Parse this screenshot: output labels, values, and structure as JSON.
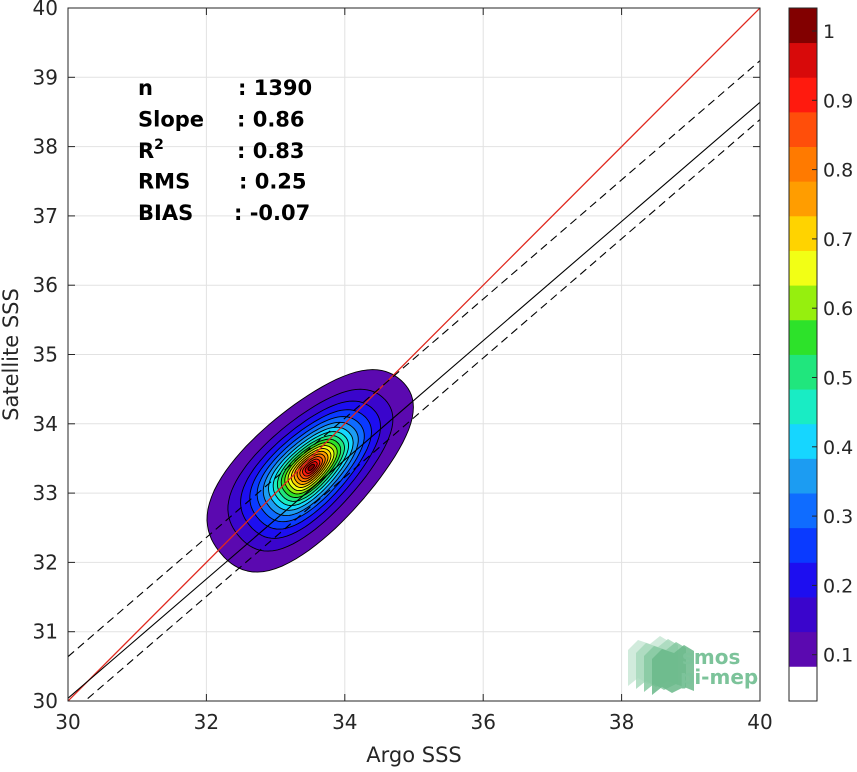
{
  "chart_data": {
    "type": "heatmap",
    "subtype": "density-contour",
    "xlabel": "Argo SSS",
    "ylabel": "Satellite SSS",
    "xlim": [
      30,
      40
    ],
    "ylim": [
      30,
      40
    ],
    "xticks": [
      30,
      32,
      34,
      36,
      38,
      40
    ],
    "yticks": [
      30,
      31,
      32,
      33,
      34,
      35,
      36,
      37,
      38,
      39,
      40
    ],
    "grid": true,
    "stats": [
      {
        "label": "n",
        "value": ": 1390"
      },
      {
        "label": "Slope",
        "value": ": 0.86"
      },
      {
        "label": "R",
        "sup": "2",
        "value": ": 0.83"
      },
      {
        "label": "RMS",
        "value": ": 0.25"
      },
      {
        "label": "BIAS",
        "value": ": -0.07"
      }
    ],
    "lines": {
      "identity": {
        "from": [
          30,
          30
        ],
        "to": [
          40,
          40
        ],
        "color": "#e0281e"
      },
      "regression": {
        "slope": 0.86,
        "intercept": 4.24,
        "color": "#000000"
      },
      "upper_bound": {
        "slope": 0.86,
        "intercept": 4.84,
        "color": "#000000",
        "style": "dashed"
      },
      "lower_bound": {
        "slope": 0.86,
        "intercept": 3.99,
        "color": "#000000",
        "style": "dashed"
      }
    },
    "density": {
      "center": [
        33.4,
        33.3
      ],
      "axis_angle_deg": 44,
      "levels": [
        0.05,
        0.1,
        0.15,
        0.2,
        0.25,
        0.3,
        0.35,
        0.4,
        0.45,
        0.5,
        0.55,
        0.6,
        0.65,
        0.7,
        0.75,
        0.8,
        0.85,
        0.9,
        0.95
      ]
    },
    "colorbar": {
      "ticks": [
        0.1,
        0.2,
        0.3,
        0.4,
        0.5,
        0.6,
        0.7,
        0.8,
        0.9,
        1
      ],
      "tick_labels": [
        "0.1",
        "0.2",
        "0.3",
        "0.4",
        "0.5",
        "0.6",
        "0.7",
        "0.8",
        "0.9",
        "1"
      ],
      "range": [
        0,
        1
      ],
      "colors": [
        "#ffffff",
        "#5b09b0",
        "#3a05cc",
        "#1d0ef0",
        "#0a3aff",
        "#0f6cff",
        "#1c9cf2",
        "#16d6ff",
        "#19ecc4",
        "#20e67d",
        "#2de22a",
        "#96ef0e",
        "#f2ff15",
        "#ffd300",
        "#ff9d00",
        "#ff7a00",
        "#ff4e0a",
        "#ff1a0e",
        "#d80a0a",
        "#820000"
      ]
    }
  },
  "logo": {
    "line1": "smos",
    "line2": "pi-mep",
    "color": "#7cc39a"
  }
}
